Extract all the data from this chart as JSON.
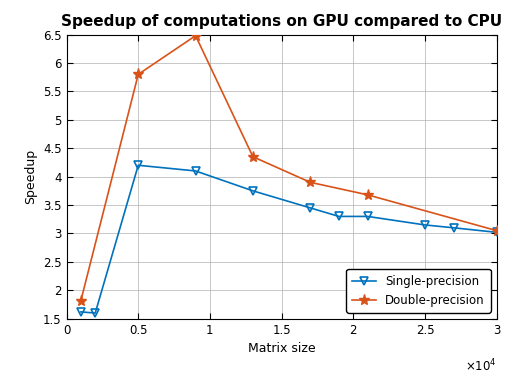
{
  "title": "Speedup of computations on GPU compared to CPU",
  "xlabel": "Matrix size",
  "ylabel": "Speedup",
  "xlim": [
    0,
    30000
  ],
  "ylim": [
    1.5,
    6.5
  ],
  "xticks": [
    0,
    5000,
    10000,
    15000,
    20000,
    25000,
    30000
  ],
  "xtick_labels": [
    "0",
    "0.5",
    "1",
    "1.5",
    "2",
    "2.5",
    "3"
  ],
  "yticks": [
    1.5,
    2.0,
    2.5,
    3.0,
    3.5,
    4.0,
    4.5,
    5.0,
    5.5,
    6.0,
    6.5
  ],
  "ytick_labels": [
    "1.5",
    "2",
    "2.5",
    "3",
    "3.5",
    "4",
    "4.5",
    "5",
    "5.5",
    "6",
    "6.5"
  ],
  "single_x": [
    1000,
    2000,
    5000,
    9000,
    13000,
    17000,
    19000,
    21000,
    25000,
    27000,
    30000
  ],
  "single_y": [
    1.62,
    1.6,
    4.2,
    4.1,
    3.75,
    3.45,
    3.3,
    3.3,
    3.15,
    3.1,
    3.02
  ],
  "double_x": [
    1000,
    5000,
    9000,
    13000,
    17000,
    21000,
    30000
  ],
  "double_y": [
    1.82,
    5.8,
    6.48,
    4.35,
    3.9,
    3.68,
    3.05
  ],
  "single_color": "#0072BD",
  "double_color": "#D95319",
  "single_label": "Single-precision",
  "double_label": "Double-precision",
  "background_color": "#ffffff",
  "grid_color": "#b0b0b0",
  "title_fontsize": 11,
  "label_fontsize": 9,
  "tick_fontsize": 8.5,
  "legend_fontsize": 8.5
}
